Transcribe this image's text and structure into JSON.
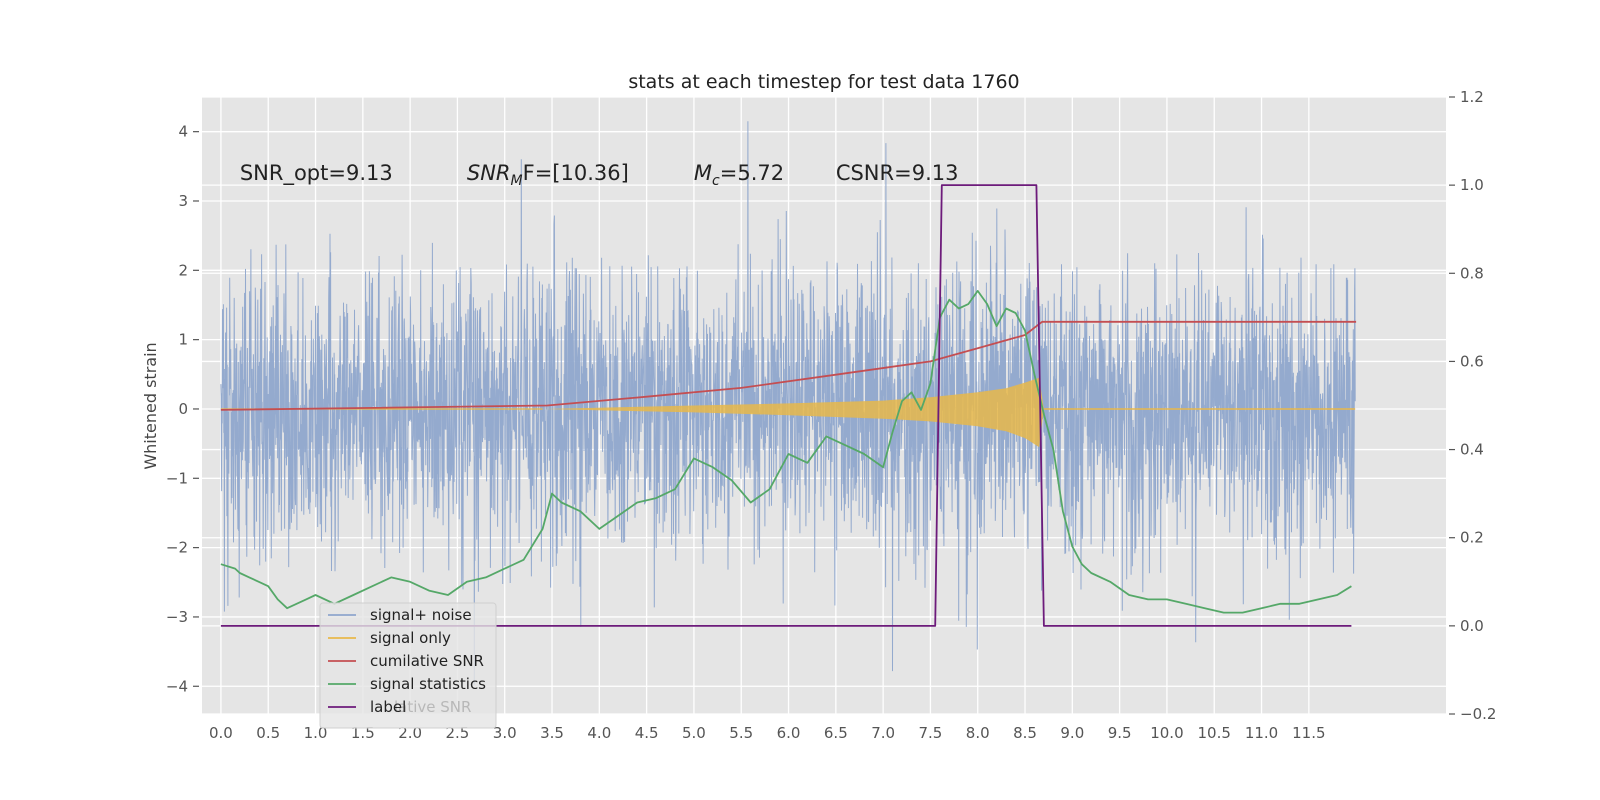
{
  "chart_data": {
    "type": "line",
    "title": "stats at each timestep for test data 1760",
    "xlabel": "",
    "ylabel": "Whitened strain",
    "xlim": [
      -0.2,
      12.95
    ],
    "ylim": [
      -4.4,
      4.5
    ],
    "y2lim": [
      -0.2,
      1.2
    ],
    "xticks": [
      "0.0",
      "0.5",
      "1.0",
      "1.5",
      "2.0",
      "2.5",
      "3.0",
      "3.5",
      "4.0",
      "4.5",
      "5.0",
      "5.5",
      "6.0",
      "6.5",
      "7.0",
      "7.5",
      "8.0",
      "8.5",
      "9.0",
      "9.5",
      "10.0",
      "10.5",
      "11.0",
      "11.5"
    ],
    "yticks": [
      "4",
      "3",
      "2",
      "1",
      "0",
      "−1",
      "−2",
      "−3",
      "−4"
    ],
    "y2ticks": [
      "1.2",
      "1.0",
      "0.8",
      "0.6",
      "0.4",
      "0.2",
      "0.0",
      "−0.2"
    ],
    "grid": true,
    "legend_position": "lower-left",
    "annotations": [
      {
        "x": 0.2,
        "y": 3.3,
        "label": "SNR_opt=9.13"
      },
      {
        "x": 2.6,
        "y": 3.3,
        "label_main": "SNR",
        "label_sub": "M",
        "label_tail": "F=[10.36]"
      },
      {
        "x": 5.0,
        "y": 3.3,
        "label_main": "M",
        "label_sub": "c",
        "label_tail": "=5.72"
      },
      {
        "x": 6.5,
        "y": 3.3,
        "label": "CSNR=9.13"
      }
    ],
    "series": [
      {
        "name": "signal+ noise",
        "color": "#8fa6cc",
        "axis": "left",
        "span": [
          0.0,
          11.99
        ],
        "approx_std": 1.0,
        "approx_range": [
          -4.0,
          4.15
        ]
      },
      {
        "name": "signal only",
        "color": "#e8b84a",
        "axis": "left",
        "envelope": {
          "x": [
            3.4,
            5.0,
            6.0,
            7.0,
            7.5,
            8.0,
            8.3,
            8.5,
            8.65,
            8.7
          ],
          "upper": [
            0.0,
            0.05,
            0.08,
            0.12,
            0.17,
            0.24,
            0.3,
            0.38,
            0.45,
            0.0
          ],
          "lower": [
            0.0,
            -0.05,
            -0.09,
            -0.14,
            -0.18,
            -0.25,
            -0.32,
            -0.42,
            -0.55,
            0.0
          ]
        }
      },
      {
        "name": "cumilative SNR",
        "color": "#c44e52",
        "axis": "right",
        "x": [
          0.0,
          3.45,
          4.5,
          5.5,
          6.5,
          7.5,
          8.0,
          8.5,
          8.68,
          12.0
        ],
        "y": [
          0.49,
          0.5,
          0.52,
          0.54,
          0.57,
          0.6,
          0.63,
          0.66,
          0.69,
          0.69
        ]
      },
      {
        "name": "signal statistics",
        "color": "#55a868",
        "axis": "right",
        "x": [
          0.0,
          0.15,
          0.2,
          0.3,
          0.4,
          0.5,
          0.6,
          0.7,
          0.8,
          0.9,
          1.0,
          1.2,
          1.4,
          1.6,
          1.8,
          2.0,
          2.2,
          2.4,
          2.6,
          2.8,
          3.0,
          3.2,
          3.4,
          3.5,
          3.6,
          3.8,
          4.0,
          4.2,
          4.4,
          4.6,
          4.8,
          5.0,
          5.2,
          5.4,
          5.6,
          5.8,
          6.0,
          6.2,
          6.4,
          6.6,
          6.8,
          7.0,
          7.1,
          7.2,
          7.3,
          7.4,
          7.5,
          7.6,
          7.7,
          7.8,
          7.9,
          8.0,
          8.1,
          8.2,
          8.3,
          8.4,
          8.5,
          8.6,
          8.7,
          8.8,
          8.9,
          9.0,
          9.1,
          9.2,
          9.4,
          9.6,
          9.8,
          10.0,
          10.2,
          10.4,
          10.6,
          10.8,
          11.0,
          11.2,
          11.4,
          11.6,
          11.8,
          11.95
        ],
        "y": [
          0.14,
          0.13,
          0.12,
          0.11,
          0.1,
          0.09,
          0.06,
          0.04,
          0.05,
          0.06,
          0.07,
          0.05,
          0.07,
          0.09,
          0.11,
          0.1,
          0.08,
          0.07,
          0.1,
          0.11,
          0.13,
          0.15,
          0.22,
          0.3,
          0.28,
          0.26,
          0.22,
          0.25,
          0.28,
          0.29,
          0.31,
          0.38,
          0.36,
          0.33,
          0.28,
          0.31,
          0.39,
          0.37,
          0.43,
          0.41,
          0.39,
          0.36,
          0.44,
          0.51,
          0.53,
          0.49,
          0.55,
          0.7,
          0.74,
          0.72,
          0.73,
          0.76,
          0.73,
          0.68,
          0.72,
          0.71,
          0.67,
          0.57,
          0.48,
          0.4,
          0.26,
          0.18,
          0.14,
          0.12,
          0.1,
          0.07,
          0.06,
          0.06,
          0.05,
          0.04,
          0.03,
          0.03,
          0.04,
          0.05,
          0.05,
          0.06,
          0.07,
          0.09
        ]
      },
      {
        "name": "label",
        "color": "#6d1b7b",
        "axis": "right",
        "x": [
          0.0,
          7.55,
          7.62,
          8.62,
          8.7,
          11.95
        ],
        "y": [
          0.0,
          0.0,
          1.0,
          1.0,
          0.0,
          0.0
        ]
      }
    ],
    "legend_ghost_text": "lative SNR"
  }
}
